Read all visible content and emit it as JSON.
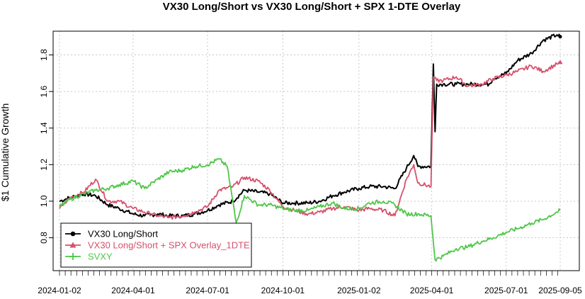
{
  "chart_data": {
    "type": "line",
    "title": "VX30 Long/Short vs VX30 Long/Short + SPX 1-DTE Overlay",
    "xlabel": "",
    "ylabel": "$1 Cumulative Growth",
    "xlim": [
      "2024-01-02",
      "2025-09-05"
    ],
    "ylim": [
      0.62,
      1.93
    ],
    "x_ticks": [
      "2024-01-02",
      "2024-04-01",
      "2024-07-01",
      "2024-10-01",
      "2025-01-02",
      "2025-04-01",
      "2025-07-01",
      "2025-09-05"
    ],
    "y_ticks": [
      "0.8",
      "1.0",
      "1.2",
      "1.4",
      "1.6",
      "1.8"
    ],
    "grid": true,
    "legend_position": "bottom-left",
    "series": [
      {
        "name": "VX30 Long/Short",
        "color": "#000000",
        "marker": "circle",
        "points": [
          [
            "2024-01-02",
            1.0
          ],
          [
            "2024-01-15",
            1.02
          ],
          [
            "2024-02-01",
            1.04
          ],
          [
            "2024-02-15",
            1.03
          ],
          [
            "2024-03-01",
            0.98
          ],
          [
            "2024-03-15",
            0.96
          ],
          [
            "2024-04-01",
            0.93
          ],
          [
            "2024-04-15",
            0.92
          ],
          [
            "2024-05-01",
            0.93
          ],
          [
            "2024-05-15",
            0.92
          ],
          [
            "2024-06-01",
            0.92
          ],
          [
            "2024-06-15",
            0.93
          ],
          [
            "2024-07-01",
            0.95
          ],
          [
            "2024-07-15",
            0.98
          ],
          [
            "2024-08-01",
            1.0
          ],
          [
            "2024-08-15",
            1.06
          ],
          [
            "2024-09-01",
            1.05
          ],
          [
            "2024-09-15",
            1.04
          ],
          [
            "2024-10-01",
            0.99
          ],
          [
            "2024-10-15",
            0.99
          ],
          [
            "2024-11-01",
            0.99
          ],
          [
            "2024-11-15",
            1.0
          ],
          [
            "2024-12-01",
            1.03
          ],
          [
            "2024-12-15",
            1.05
          ],
          [
            "2025-01-02",
            1.07
          ],
          [
            "2025-01-15",
            1.08
          ],
          [
            "2025-02-01",
            1.08
          ],
          [
            "2025-02-15",
            1.07
          ],
          [
            "2025-03-01",
            1.18
          ],
          [
            "2025-03-10",
            1.25
          ],
          [
            "2025-03-15",
            1.19
          ],
          [
            "2025-03-31",
            1.19
          ],
          [
            "2025-04-03",
            1.75
          ],
          [
            "2025-04-05",
            1.38
          ],
          [
            "2025-04-07",
            1.64
          ],
          [
            "2025-04-15",
            1.64
          ],
          [
            "2025-05-01",
            1.64
          ],
          [
            "2025-05-15",
            1.64
          ],
          [
            "2025-06-01",
            1.64
          ],
          [
            "2025-06-10",
            1.64
          ],
          [
            "2025-06-15",
            1.67
          ],
          [
            "2025-07-01",
            1.7
          ],
          [
            "2025-07-15",
            1.77
          ],
          [
            "2025-08-01",
            1.81
          ],
          [
            "2025-08-15",
            1.88
          ],
          [
            "2025-09-01",
            1.91
          ],
          [
            "2025-09-05",
            1.9
          ]
        ]
      },
      {
        "name": "VX30 Long/Short + SPX Overlay_1DTE",
        "color": "#d6506b",
        "marker": "triangle",
        "points": [
          [
            "2024-01-02",
            0.96
          ],
          [
            "2024-01-15",
            1.02
          ],
          [
            "2024-02-01",
            1.05
          ],
          [
            "2024-02-15",
            1.12
          ],
          [
            "2024-03-01",
            1.0
          ],
          [
            "2024-03-15",
            1.0
          ],
          [
            "2024-04-01",
            0.96
          ],
          [
            "2024-04-15",
            0.94
          ],
          [
            "2024-05-01",
            0.92
          ],
          [
            "2024-05-15",
            0.91
          ],
          [
            "2024-06-01",
            0.92
          ],
          [
            "2024-06-15",
            0.94
          ],
          [
            "2024-07-01",
            0.97
          ],
          [
            "2024-07-15",
            1.06
          ],
          [
            "2024-08-01",
            1.08
          ],
          [
            "2024-08-15",
            1.13
          ],
          [
            "2024-09-01",
            1.11
          ],
          [
            "2024-09-15",
            1.06
          ],
          [
            "2024-10-01",
            0.97
          ],
          [
            "2024-10-15",
            0.95
          ],
          [
            "2024-11-01",
            0.93
          ],
          [
            "2024-11-15",
            0.94
          ],
          [
            "2024-12-01",
            0.96
          ],
          [
            "2024-12-15",
            0.97
          ],
          [
            "2025-01-02",
            0.95
          ],
          [
            "2025-01-15",
            0.96
          ],
          [
            "2025-02-01",
            0.95
          ],
          [
            "2025-02-15",
            0.92
          ],
          [
            "2025-03-01",
            1.12
          ],
          [
            "2025-03-10",
            1.2
          ],
          [
            "2025-03-15",
            1.1
          ],
          [
            "2025-03-31",
            1.08
          ],
          [
            "2025-04-03",
            1.68
          ],
          [
            "2025-04-07",
            1.66
          ],
          [
            "2025-04-15",
            1.66
          ],
          [
            "2025-05-01",
            1.68
          ],
          [
            "2025-05-15",
            1.63
          ],
          [
            "2025-06-01",
            1.64
          ],
          [
            "2025-06-15",
            1.67
          ],
          [
            "2025-07-01",
            1.69
          ],
          [
            "2025-07-15",
            1.71
          ],
          [
            "2025-08-01",
            1.74
          ],
          [
            "2025-08-15",
            1.71
          ],
          [
            "2025-09-01",
            1.75
          ],
          [
            "2025-09-05",
            1.76
          ]
        ]
      },
      {
        "name": "SVXY",
        "color": "#4fc749",
        "marker": "plus",
        "points": [
          [
            "2024-01-02",
            0.97
          ],
          [
            "2024-01-15",
            1.01
          ],
          [
            "2024-02-01",
            1.04
          ],
          [
            "2024-02-15",
            1.06
          ],
          [
            "2024-03-01",
            1.07
          ],
          [
            "2024-03-15",
            1.09
          ],
          [
            "2024-04-01",
            1.11
          ],
          [
            "2024-04-15",
            1.07
          ],
          [
            "2024-05-01",
            1.12
          ],
          [
            "2024-05-15",
            1.16
          ],
          [
            "2024-06-01",
            1.17
          ],
          [
            "2024-06-15",
            1.19
          ],
          [
            "2024-07-01",
            1.2
          ],
          [
            "2024-07-15",
            1.23
          ],
          [
            "2024-07-25",
            1.19
          ],
          [
            "2024-08-05",
            0.88
          ],
          [
            "2024-08-15",
            1.03
          ],
          [
            "2024-09-01",
            0.98
          ],
          [
            "2024-09-15",
            0.98
          ],
          [
            "2024-10-01",
            0.96
          ],
          [
            "2024-10-15",
            0.95
          ],
          [
            "2024-11-01",
            0.95
          ],
          [
            "2024-11-15",
            0.97
          ],
          [
            "2024-12-01",
            0.99
          ],
          [
            "2024-12-15",
            0.96
          ],
          [
            "2025-01-02",
            0.96
          ],
          [
            "2025-01-15",
            0.99
          ],
          [
            "2025-02-01",
            1.0
          ],
          [
            "2025-02-15",
            0.98
          ],
          [
            "2025-03-01",
            0.93
          ],
          [
            "2025-03-15",
            0.93
          ],
          [
            "2025-03-31",
            0.92
          ],
          [
            "2025-04-05",
            0.68
          ],
          [
            "2025-04-15",
            0.7
          ],
          [
            "2025-05-01",
            0.74
          ],
          [
            "2025-05-15",
            0.75
          ],
          [
            "2025-06-01",
            0.78
          ],
          [
            "2025-06-15",
            0.8
          ],
          [
            "2025-07-01",
            0.83
          ],
          [
            "2025-07-15",
            0.85
          ],
          [
            "2025-08-01",
            0.88
          ],
          [
            "2025-08-15",
            0.9
          ],
          [
            "2025-09-01",
            0.94
          ],
          [
            "2025-09-05",
            0.95
          ]
        ]
      }
    ]
  }
}
